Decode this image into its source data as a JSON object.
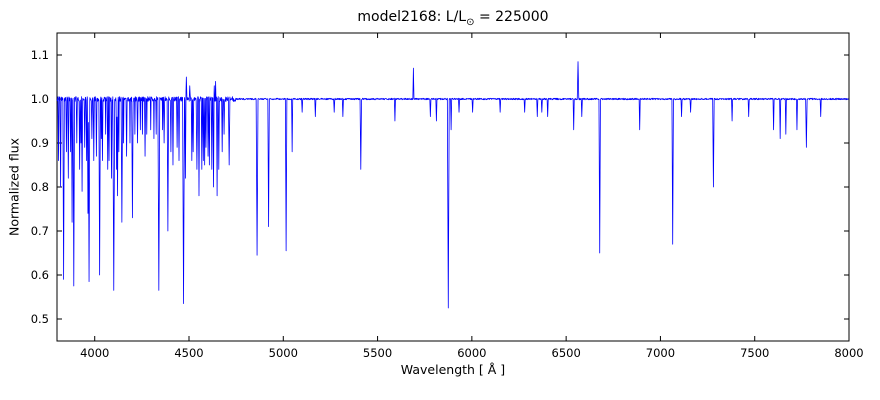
{
  "figure": {
    "title_prefix": "model2168: L/L",
    "title_sub": "⊙",
    "title_suffix": " = 225000",
    "xlabel": "Wavelength [ Å ]",
    "ylabel": "Normalized flux"
  },
  "chart_data": {
    "type": "line",
    "title": "model2168: L/L⊙ = 225000",
    "xlabel": "Wavelength [ Å ]",
    "ylabel": "Normalized flux",
    "xlim": [
      3800,
      8000
    ],
    "ylim": [
      0.45,
      1.15
    ],
    "x_ticks": [
      4000,
      4500,
      5000,
      5500,
      6000,
      6500,
      7000,
      7500,
      8000
    ],
    "y_ticks": [
      0.5,
      0.6,
      0.7,
      0.8,
      0.9,
      1.0,
      1.1
    ],
    "line_color": "#0000ff",
    "axis_color": "#000000",
    "continuum_flux": 1.0,
    "lines_format": "[wavelength_angstrom, peak_or_min_flux, halfwidth_angstrom]",
    "spectral_lines": [
      [
        3808,
        0.86,
        3
      ],
      [
        3819,
        0.8,
        3
      ],
      [
        3835,
        0.59,
        4
      ],
      [
        3850,
        0.88,
        3
      ],
      [
        3860,
        0.82,
        3
      ],
      [
        3872,
        0.88,
        3
      ],
      [
        3880,
        0.72,
        3
      ],
      [
        3889,
        0.575,
        4
      ],
      [
        3905,
        0.9,
        3
      ],
      [
        3920,
        0.84,
        3
      ],
      [
        3927,
        0.9,
        3
      ],
      [
        3933,
        0.79,
        3
      ],
      [
        3947,
        0.89,
        3
      ],
      [
        3957,
        0.86,
        3
      ],
      [
        3964,
        0.74,
        3
      ],
      [
        3970,
        0.585,
        4
      ],
      [
        3985,
        0.91,
        3
      ],
      [
        3995,
        0.86,
        3
      ],
      [
        4009,
        0.87,
        3
      ],
      [
        4026,
        0.6,
        4
      ],
      [
        4035,
        0.91,
        2
      ],
      [
        4041,
        0.86,
        3
      ],
      [
        4058,
        0.92,
        2
      ],
      [
        4069,
        0.84,
        3
      ],
      [
        4076,
        0.86,
        3
      ],
      [
        4089,
        0.82,
        3
      ],
      [
        4101,
        0.565,
        5
      ],
      [
        4116,
        0.84,
        3
      ],
      [
        4121,
        0.78,
        3
      ],
      [
        4128,
        0.88,
        2
      ],
      [
        4144,
        0.72,
        4
      ],
      [
        4153,
        0.9,
        2
      ],
      [
        4169,
        0.87,
        3
      ],
      [
        4187,
        0.9,
        2
      ],
      [
        4200,
        0.73,
        4
      ],
      [
        4213,
        0.92,
        2
      ],
      [
        4227,
        0.9,
        3
      ],
      [
        4242,
        0.93,
        2
      ],
      [
        4253,
        0.92,
        2
      ],
      [
        4267,
        0.87,
        3
      ],
      [
        4276,
        0.92,
        2
      ],
      [
        4297,
        0.93,
        2
      ],
      [
        4314,
        0.91,
        2
      ],
      [
        4326,
        0.92,
        2
      ],
      [
        4340,
        0.565,
        5
      ],
      [
        4360,
        0.93,
        2
      ],
      [
        4368,
        0.9,
        3
      ],
      [
        4388,
        0.7,
        4
      ],
      [
        4404,
        0.88,
        3
      ],
      [
        4415,
        0.85,
        3
      ],
      [
        4437,
        0.89,
        3
      ],
      [
        4447,
        0.86,
        3
      ],
      [
        4471,
        0.535,
        5
      ],
      [
        4481,
        0.82,
        3
      ],
      [
        4486,
        1.05,
        3
      ],
      [
        4504,
        1.03,
        3
      ],
      [
        4515,
        0.86,
        3
      ],
      [
        4522,
        0.88,
        3
      ],
      [
        4542,
        0.84,
        4
      ],
      [
        4553,
        0.78,
        3
      ],
      [
        4568,
        0.84,
        3
      ],
      [
        4576,
        0.86,
        3
      ],
      [
        4583,
        0.85,
        3
      ],
      [
        4590,
        0.89,
        3
      ],
      [
        4601,
        0.87,
        3
      ],
      [
        4608,
        0.85,
        3
      ],
      [
        4621,
        0.84,
        3
      ],
      [
        4630,
        0.8,
        3
      ],
      [
        4634,
        1.03,
        2
      ],
      [
        4641,
        1.04,
        2
      ],
      [
        4649,
        0.78,
        3
      ],
      [
        4658,
        0.84,
        3
      ],
      [
        4676,
        0.88,
        3
      ],
      [
        4686,
        0.92,
        3
      ],
      [
        4713,
        0.85,
        4
      ],
      [
        4861,
        0.645,
        5
      ],
      [
        4922,
        0.71,
        4
      ],
      [
        5015,
        0.655,
        4
      ],
      [
        5047,
        0.88,
        3
      ],
      [
        5100,
        0.97,
        3
      ],
      [
        5170,
        0.96,
        3
      ],
      [
        5270,
        0.97,
        3
      ],
      [
        5316,
        0.96,
        3
      ],
      [
        5411,
        0.84,
        4
      ],
      [
        5592,
        0.95,
        3
      ],
      [
        5690,
        1.07,
        3
      ],
      [
        5780,
        0.96,
        3
      ],
      [
        5812,
        0.95,
        3
      ],
      [
        5875,
        0.525,
        5
      ],
      [
        5890,
        0.93,
        3
      ],
      [
        5932,
        0.97,
        3
      ],
      [
        6004,
        0.97,
        3
      ],
      [
        6150,
        0.97,
        3
      ],
      [
        6280,
        0.97,
        3
      ],
      [
        6347,
        0.96,
        3
      ],
      [
        6371,
        0.97,
        3
      ],
      [
        6402,
        0.96,
        3
      ],
      [
        6540,
        0.93,
        3
      ],
      [
        6563,
        1.085,
        4
      ],
      [
        6583,
        0.96,
        3
      ],
      [
        6678,
        0.65,
        4
      ],
      [
        6890,
        0.93,
        3
      ],
      [
        7065,
        0.67,
        4
      ],
      [
        7112,
        0.96,
        3
      ],
      [
        7160,
        0.97,
        3
      ],
      [
        7281,
        0.8,
        4
      ],
      [
        7380,
        0.95,
        3
      ],
      [
        7468,
        0.96,
        3
      ],
      [
        7600,
        0.93,
        3
      ],
      [
        7635,
        0.91,
        3
      ],
      [
        7665,
        0.92,
        3
      ],
      [
        7724,
        0.93,
        3
      ],
      [
        7774,
        0.89,
        4
      ],
      [
        7850,
        0.96,
        3
      ]
    ]
  }
}
